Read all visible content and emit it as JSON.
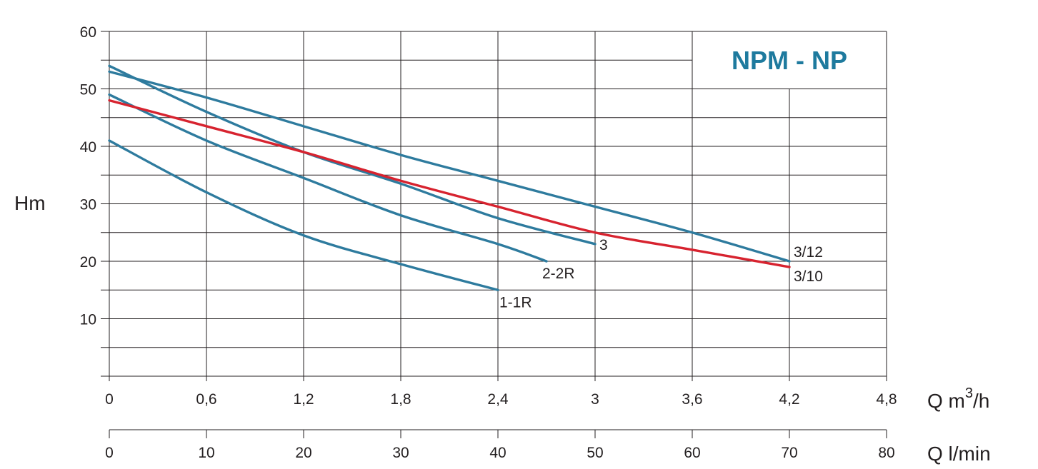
{
  "chart_data": {
    "type": "line",
    "title": "NPM - NP",
    "ylabel": "Hm",
    "xlabel": "Q m³/h",
    "xlabel_parts": {
      "prefix": "Q m",
      "sup": "3",
      "suffix": "/h"
    },
    "xlabel2": "Q l/min",
    "ylim": [
      0,
      60
    ],
    "xlim": [
      0,
      4.8
    ],
    "xlim2": [
      0,
      80
    ],
    "y_ticks": [
      "",
      "10",
      "20",
      "30",
      "40",
      "50",
      "60"
    ],
    "x_ticks": [
      "0",
      "0,6",
      "1,2",
      "1,8",
      "2,4",
      "3",
      "3,6",
      "4,2",
      "4,8"
    ],
    "x2_ticks": [
      "0",
      "10",
      "20",
      "30",
      "40",
      "50",
      "60",
      "70",
      "80"
    ],
    "grid": true,
    "series": [
      {
        "name": "1-1R",
        "color": "#2e7b9e",
        "x": [
          0,
          0.6,
          1.2,
          1.8,
          2.4
        ],
        "y": [
          41,
          32,
          24.5,
          19.5,
          15
        ]
      },
      {
        "name": "2-2R",
        "color": "#2e7b9e",
        "x": [
          0,
          0.6,
          1.2,
          1.8,
          2.4,
          2.7
        ],
        "y": [
          49,
          41,
          34.5,
          28,
          23,
          20
        ]
      },
      {
        "name": "3",
        "color": "#2e7b9e",
        "x": [
          0,
          0.6,
          1.2,
          1.8,
          2.4,
          3.0
        ],
        "y": [
          54,
          46,
          39,
          33.5,
          27.5,
          23
        ]
      },
      {
        "name": "3/12",
        "color": "#2e7b9e",
        "x": [
          0,
          0.6,
          1.2,
          1.8,
          2.4,
          3.0,
          3.6,
          4.2
        ],
        "y": [
          53,
          48.5,
          43.5,
          38.5,
          34,
          29.5,
          25,
          20
        ]
      },
      {
        "name": "3/10",
        "color": "#d7232f",
        "x": [
          0,
          0.6,
          1.2,
          1.8,
          2.4,
          3.0,
          3.6,
          4.2
        ],
        "y": [
          48,
          43.5,
          39,
          34,
          29.5,
          25,
          22,
          19
        ]
      }
    ],
    "brand_color": "#1e7a9e"
  }
}
